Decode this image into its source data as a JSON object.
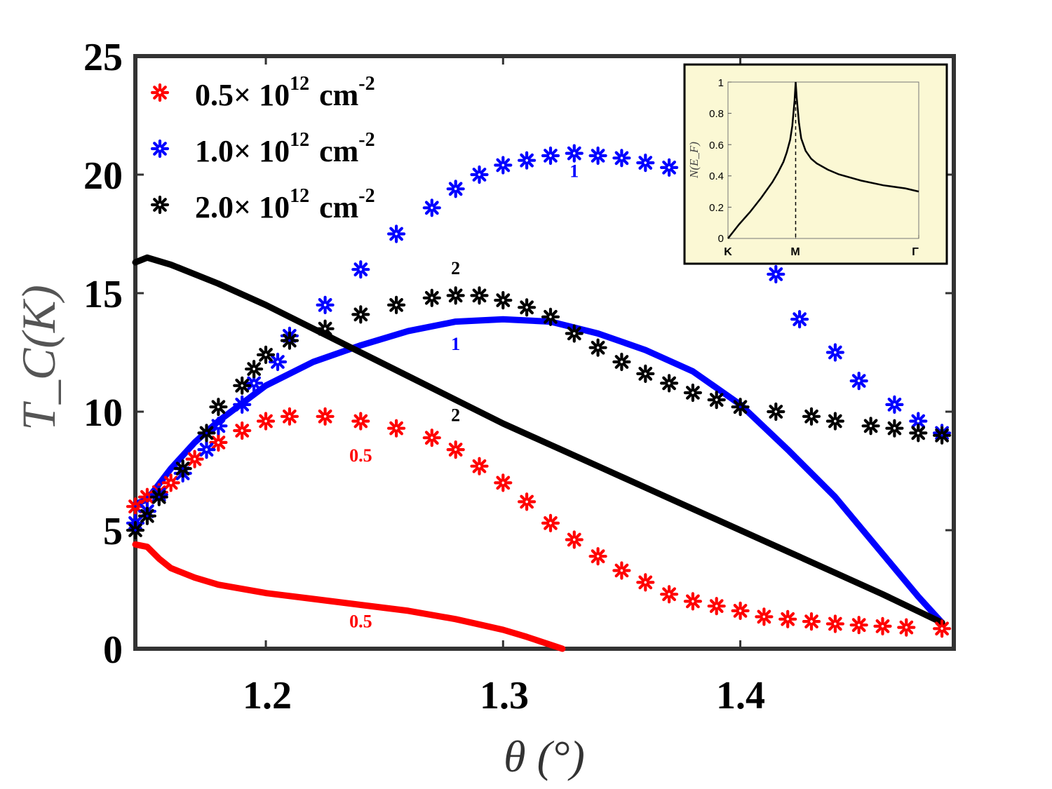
{
  "chart_data": {
    "type": "scatter",
    "title": "",
    "xlabel": "θ (°)",
    "ylabel": "T_C(K)",
    "xlim": [
      1.145,
      1.49
    ],
    "ylim": [
      0,
      25
    ],
    "x_ticks": [
      "1.2",
      "1.3",
      "1.4"
    ],
    "y_ticks": [
      "0",
      "5",
      "10",
      "15",
      "20",
      "25"
    ],
    "legend_position": "top-left",
    "series": [
      {
        "name": "0.5× 10^12 cm^-2",
        "legend_main": "0.5× 10",
        "legend_exp": "12",
        "legend_unit": "cm",
        "legend_unit_exp": "-2",
        "color": "#ff0000",
        "marker": "asterisk",
        "x": [
          1.145,
          1.15,
          1.155,
          1.16,
          1.17,
          1.18,
          1.19,
          1.2,
          1.21,
          1.225,
          1.24,
          1.255,
          1.27,
          1.28,
          1.29,
          1.3,
          1.31,
          1.32,
          1.33,
          1.34,
          1.35,
          1.36,
          1.37,
          1.38,
          1.39,
          1.4,
          1.41,
          1.42,
          1.43,
          1.44,
          1.45,
          1.46,
          1.47,
          1.485
        ],
        "y": [
          6.0,
          6.4,
          6.6,
          7.0,
          8.0,
          8.7,
          9.2,
          9.6,
          9.8,
          9.8,
          9.6,
          9.3,
          8.9,
          8.4,
          7.7,
          7.0,
          6.2,
          5.3,
          4.6,
          3.9,
          3.3,
          2.8,
          2.3,
          2.0,
          1.8,
          1.6,
          1.35,
          1.25,
          1.15,
          1.05,
          1.0,
          0.95,
          0.9,
          0.85
        ]
      },
      {
        "name": "1.0× 10^12 cm^-2",
        "legend_main": "1.0× 10",
        "legend_exp": "12",
        "legend_unit": "cm",
        "legend_unit_exp": "-2",
        "color": "#0000ff",
        "marker": "asterisk",
        "x": [
          1.145,
          1.15,
          1.155,
          1.165,
          1.175,
          1.18,
          1.19,
          1.195,
          1.205,
          1.21,
          1.225,
          1.24,
          1.255,
          1.27,
          1.28,
          1.29,
          1.3,
          1.31,
          1.32,
          1.33,
          1.34,
          1.35,
          1.36,
          1.37,
          1.415,
          1.425,
          1.44,
          1.45,
          1.465,
          1.475,
          1.485
        ],
        "y": [
          5.3,
          5.8,
          6.5,
          7.4,
          8.4,
          9.4,
          10.3,
          11.2,
          12.1,
          13.2,
          14.5,
          16.0,
          17.5,
          18.6,
          19.4,
          20.0,
          20.4,
          20.6,
          20.8,
          20.9,
          20.8,
          20.7,
          20.5,
          20.3,
          15.8,
          13.9,
          12.5,
          11.3,
          10.3,
          9.6,
          9.1
        ]
      },
      {
        "name": "2.0× 10^12 cm^-2",
        "legend_main": "2.0× 10",
        "legend_exp": "12",
        "legend_unit": "cm",
        "legend_unit_exp": "-2",
        "color": "#000000",
        "marker": "asterisk",
        "x": [
          1.145,
          1.15,
          1.155,
          1.165,
          1.175,
          1.18,
          1.19,
          1.195,
          1.2,
          1.21,
          1.225,
          1.24,
          1.255,
          1.27,
          1.28,
          1.29,
          1.3,
          1.31,
          1.32,
          1.33,
          1.34,
          1.35,
          1.36,
          1.37,
          1.38,
          1.39,
          1.4,
          1.415,
          1.43,
          1.44,
          1.455,
          1.465,
          1.475,
          1.485
        ],
        "y": [
          5.0,
          5.6,
          6.4,
          7.6,
          9.1,
          10.2,
          11.1,
          11.8,
          12.4,
          13.0,
          13.5,
          14.1,
          14.5,
          14.8,
          14.9,
          14.9,
          14.7,
          14.4,
          14.0,
          13.3,
          12.7,
          12.1,
          11.6,
          11.2,
          10.8,
          10.5,
          10.2,
          10.0,
          9.8,
          9.6,
          9.4,
          9.3,
          9.1,
          9.0
        ]
      }
    ],
    "curves": [
      {
        "name": "0.5 curve",
        "color": "#ff0000",
        "x": [
          1.145,
          1.15,
          1.155,
          1.16,
          1.17,
          1.18,
          1.2,
          1.22,
          1.24,
          1.26,
          1.28,
          1.3,
          1.31,
          1.325
        ],
        "y": [
          4.4,
          4.3,
          3.8,
          3.4,
          3.0,
          2.7,
          2.35,
          2.1,
          1.85,
          1.6,
          1.25,
          0.8,
          0.5,
          0.0
        ]
      },
      {
        "name": "1 curve",
        "color": "#0000ff",
        "x": [
          1.145,
          1.15,
          1.16,
          1.17,
          1.18,
          1.2,
          1.22,
          1.24,
          1.26,
          1.28,
          1.3,
          1.32,
          1.34,
          1.36,
          1.38,
          1.4,
          1.42,
          1.44,
          1.46,
          1.475,
          1.485
        ],
        "y": [
          6.1,
          6.3,
          7.6,
          8.7,
          9.6,
          11.1,
          12.1,
          12.8,
          13.4,
          13.8,
          13.9,
          13.8,
          13.3,
          12.6,
          11.7,
          10.3,
          8.4,
          6.4,
          4.0,
          2.2,
          1.1
        ]
      },
      {
        "name": "2 curve",
        "color": "#000000",
        "x": [
          1.145,
          1.15,
          1.16,
          1.18,
          1.2,
          1.22,
          1.24,
          1.26,
          1.28,
          1.3,
          1.32,
          1.34,
          1.36,
          1.38,
          1.4,
          1.42,
          1.44,
          1.46,
          1.485
        ],
        "y": [
          16.3,
          16.5,
          16.2,
          15.4,
          14.5,
          13.5,
          12.5,
          11.5,
          10.5,
          9.5,
          8.6,
          7.7,
          6.8,
          5.9,
          5.0,
          4.1,
          3.2,
          2.3,
          1.1
        ]
      }
    ],
    "annotations": [
      {
        "text": "1",
        "x": 1.33,
        "y": 19.9,
        "color": "#0000ff"
      },
      {
        "text": "2",
        "x": 1.28,
        "y": 15.8,
        "color": "#000000"
      },
      {
        "text": "1",
        "x": 1.28,
        "y": 12.6,
        "color": "#0000ff"
      },
      {
        "text": "2",
        "x": 1.28,
        "y": 9.6,
        "color": "#000000"
      },
      {
        "text": "0.5",
        "x": 1.24,
        "y": 7.9,
        "color": "#ff0000"
      },
      {
        "text": "0.5",
        "x": 1.24,
        "y": 0.9,
        "color": "#ff0000"
      }
    ],
    "inset": {
      "type": "line",
      "ylabel": "N(E_F)",
      "background": "#fbf8d4",
      "y_ticks": [
        "0",
        "0.2",
        "0.4",
        "0.6",
        "0.8",
        "1"
      ],
      "categories": [
        "K",
        "M",
        "Γ"
      ],
      "ylim": [
        0,
        1
      ],
      "x": [
        0,
        0.1,
        0.2,
        0.3,
        0.4,
        0.45,
        0.5,
        0.53,
        0.56,
        0.58,
        0.6,
        0.61,
        0.62,
        0.64,
        0.66,
        0.7,
        0.75,
        0.8,
        0.9,
        1.0,
        1.2,
        1.4,
        1.6,
        1.72
      ],
      "y": [
        0.0,
        0.09,
        0.17,
        0.26,
        0.36,
        0.42,
        0.49,
        0.55,
        0.63,
        0.72,
        0.88,
        1.0,
        0.9,
        0.74,
        0.64,
        0.56,
        0.51,
        0.48,
        0.44,
        0.41,
        0.37,
        0.34,
        0.32,
        0.3
      ],
      "x_positions": [
        0,
        0.61,
        1.72
      ],
      "dashed_x": 0.61
    }
  }
}
